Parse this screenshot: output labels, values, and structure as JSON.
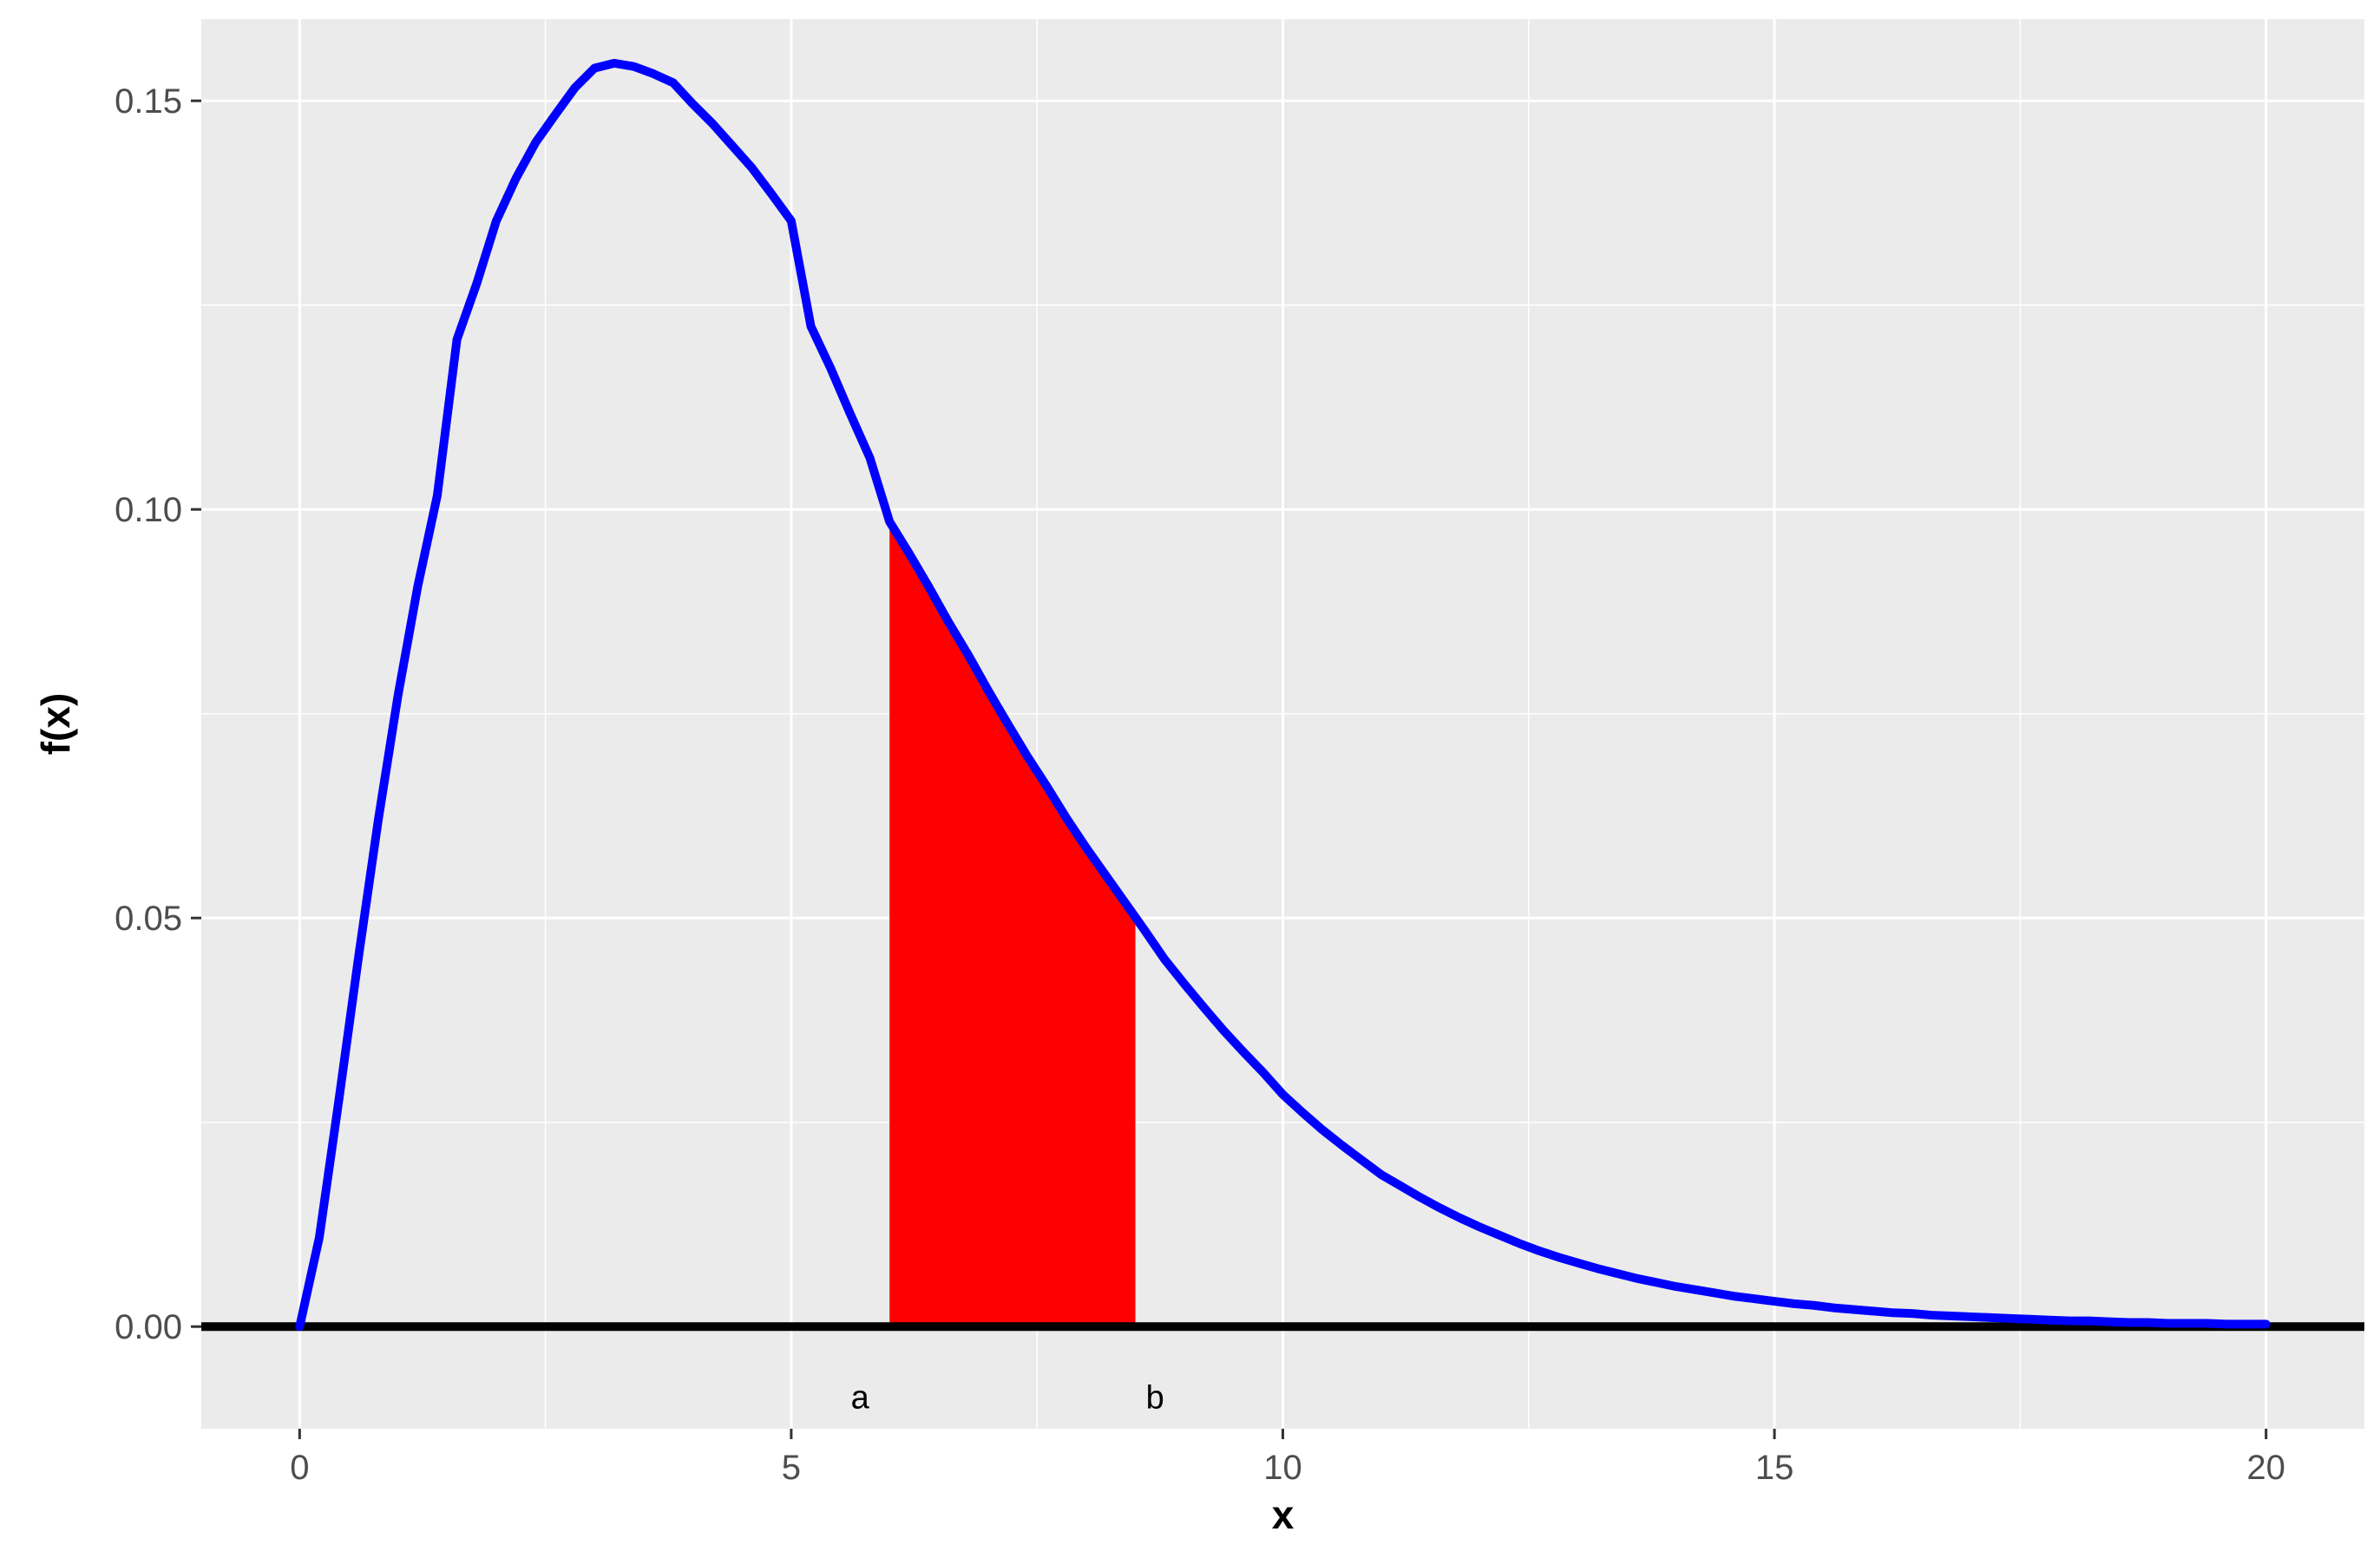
{
  "chart_data": {
    "type": "area",
    "title": "",
    "xlabel": "x",
    "ylabel": "f(x)",
    "xlim": [
      -1,
      21
    ],
    "ylim": [
      -0.0125,
      0.16
    ],
    "x_ticks": [
      0,
      5,
      10,
      15,
      20
    ],
    "x_tick_labels": [
      "0",
      "5",
      "10",
      "15",
      "20"
    ],
    "y_ticks": [
      0.0,
      0.05,
      0.1,
      0.15
    ],
    "y_tick_labels": [
      "0.00",
      "0.05",
      "0.10",
      "0.15"
    ],
    "grid": true,
    "background": "#ebebeb",
    "series": [
      {
        "type": "line",
        "color": "#0000ff",
        "x": [
          0,
          0.2,
          0.4,
          0.6,
          0.8,
          1.0,
          1.2,
          1.4,
          1.6,
          1.8,
          2.0,
          2.2,
          2.4,
          2.6,
          2.8,
          3.0,
          3.2,
          3.4,
          3.6,
          3.8,
          4.0,
          4.2,
          4.4,
          4.6,
          4.8,
          5.0,
          5.2,
          5.4,
          5.6,
          5.8,
          6.0,
          6.2,
          6.4,
          6.6,
          6.8,
          7.0,
          7.2,
          7.4,
          7.6,
          7.8,
          8.0,
          8.2,
          8.4,
          8.6,
          8.8,
          9.0,
          9.2,
          9.4,
          9.6,
          9.8,
          10.0,
          10.2,
          10.4,
          10.6,
          10.8,
          11.0,
          11.2,
          11.4,
          11.6,
          11.8,
          12.0,
          12.2,
          12.4,
          12.6,
          12.8,
          13.0,
          13.2,
          13.4,
          13.6,
          13.8,
          14.0,
          14.2,
          14.4,
          14.6,
          14.8,
          15.0,
          15.2,
          15.4,
          15.6,
          15.8,
          16.0,
          16.2,
          16.4,
          16.6,
          16.8,
          17.0,
          17.2,
          17.4,
          17.6,
          17.8,
          18.0,
          18.2,
          18.4,
          18.6,
          18.8,
          19.0,
          19.2,
          19.4,
          19.6,
          19.8,
          20.0
        ],
        "y": [
          0,
          0.0109,
          0.0278,
          0.0453,
          0.062,
          0.0772,
          0.0905,
          0.1017,
          0.1208,
          0.1276,
          0.1353,
          0.1405,
          0.1449,
          0.1483,
          0.1516,
          0.154,
          0.1546,
          0.1542,
          0.1533,
          0.1522,
          0.1496,
          0.1472,
          0.1445,
          0.1418,
          0.1386,
          0.1353,
          0.1224,
          0.1173,
          0.1117,
          0.1063,
          0.0985,
          0.0946,
          0.0905,
          0.0862,
          0.0822,
          0.0779,
          0.0738,
          0.0698,
          0.0661,
          0.0622,
          0.0586,
          0.0552,
          0.0518,
          0.0484,
          0.0449,
          0.0419,
          0.039,
          0.0362,
          0.0336,
          0.0311,
          0.0284,
          0.0262,
          0.0241,
          0.0222,
          0.0204,
          0.0186,
          0.0172,
          0.0158,
          0.0145,
          0.0133,
          0.0122,
          0.0112,
          0.0102,
          0.0093,
          0.0085,
          0.0078,
          0.0071,
          0.0065,
          0.0059,
          0.0054,
          0.0049,
          0.0045,
          0.0041,
          0.0037,
          0.0034,
          0.0031,
          0.0028,
          0.0026,
          0.0023,
          0.0021,
          0.0019,
          0.0017,
          0.0016,
          0.0014,
          0.0013,
          0.0012,
          0.0011,
          0.001,
          0.0009,
          0.0008,
          0.0007,
          0.0007,
          0.0006,
          0.0005,
          0.0005,
          0.0004,
          0.0004,
          0.0004,
          0.0003,
          0.0003,
          0.0003
        ]
      }
    ],
    "shaded_region": {
      "from": 6.0,
      "to": 8.5,
      "color": "#ff0000"
    },
    "baseline": {
      "y": 0,
      "color": "#000000"
    },
    "annotations": [
      {
        "text": "a",
        "x": 5.7,
        "y": -0.0085
      },
      {
        "text": "b",
        "x": 8.7,
        "y": -0.0085
      }
    ]
  }
}
